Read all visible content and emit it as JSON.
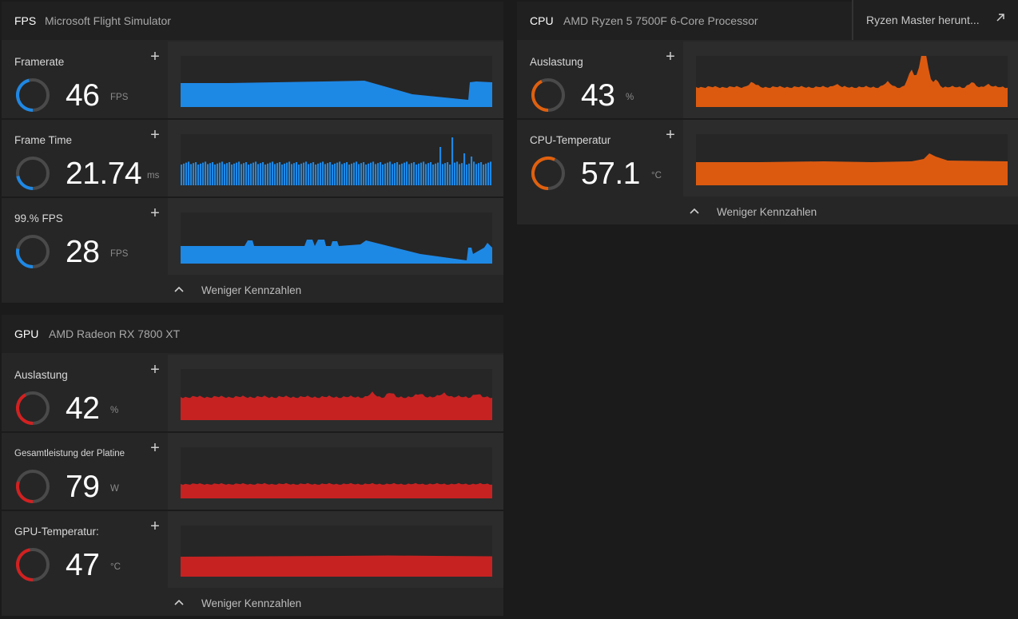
{
  "colors": {
    "fps": "#1e88e5",
    "gpu": "#d32020",
    "cpu": "#e0600e",
    "gauge_track": "#4a4a4a"
  },
  "fps_panel": {
    "tag": "FPS",
    "subtitle": "Microsoft Flight Simulator",
    "footer": "Weniger Kennzahlen",
    "metrics": [
      {
        "label": "Framerate",
        "value": "46",
        "unit": "FPS",
        "level": 0.46
      },
      {
        "label": "Frame Time",
        "value": "21.74",
        "unit": "ms",
        "level": 0.22
      },
      {
        "label": "99.% FPS",
        "value": "28",
        "unit": "FPS",
        "level": 0.28
      }
    ]
  },
  "gpu_panel": {
    "tag": "GPU",
    "subtitle": "AMD Radeon RX 7800 XT",
    "footer": "Weniger Kennzahlen",
    "metrics": [
      {
        "label": "Auslastung",
        "value": "42",
        "unit": "%",
        "level": 0.42
      },
      {
        "label": "Gesamtleistung der Platine",
        "value": "79",
        "unit": "W",
        "level": 0.3
      },
      {
        "label": "GPU-Temperatur:",
        "value": "47",
        "unit": "°C",
        "level": 0.47
      }
    ]
  },
  "cpu_panel": {
    "tag": "CPU",
    "subtitle": "AMD Ryzen 5 7500F 6-Core Processor",
    "footer": "Weniger Kennzahlen",
    "link": {
      "label": "Ryzen Master herunt...",
      "icon": "arrow-up-right-icon"
    },
    "metrics": [
      {
        "label": "Auslastung",
        "value": "43",
        "unit": "%",
        "level": 0.43
      },
      {
        "label": "CPU-Temperatur",
        "value": "57.1",
        "unit": "°C",
        "level": 0.57
      }
    ]
  },
  "icons": {
    "add": "plus-icon",
    "collapse": "chevron-up-icon"
  }
}
